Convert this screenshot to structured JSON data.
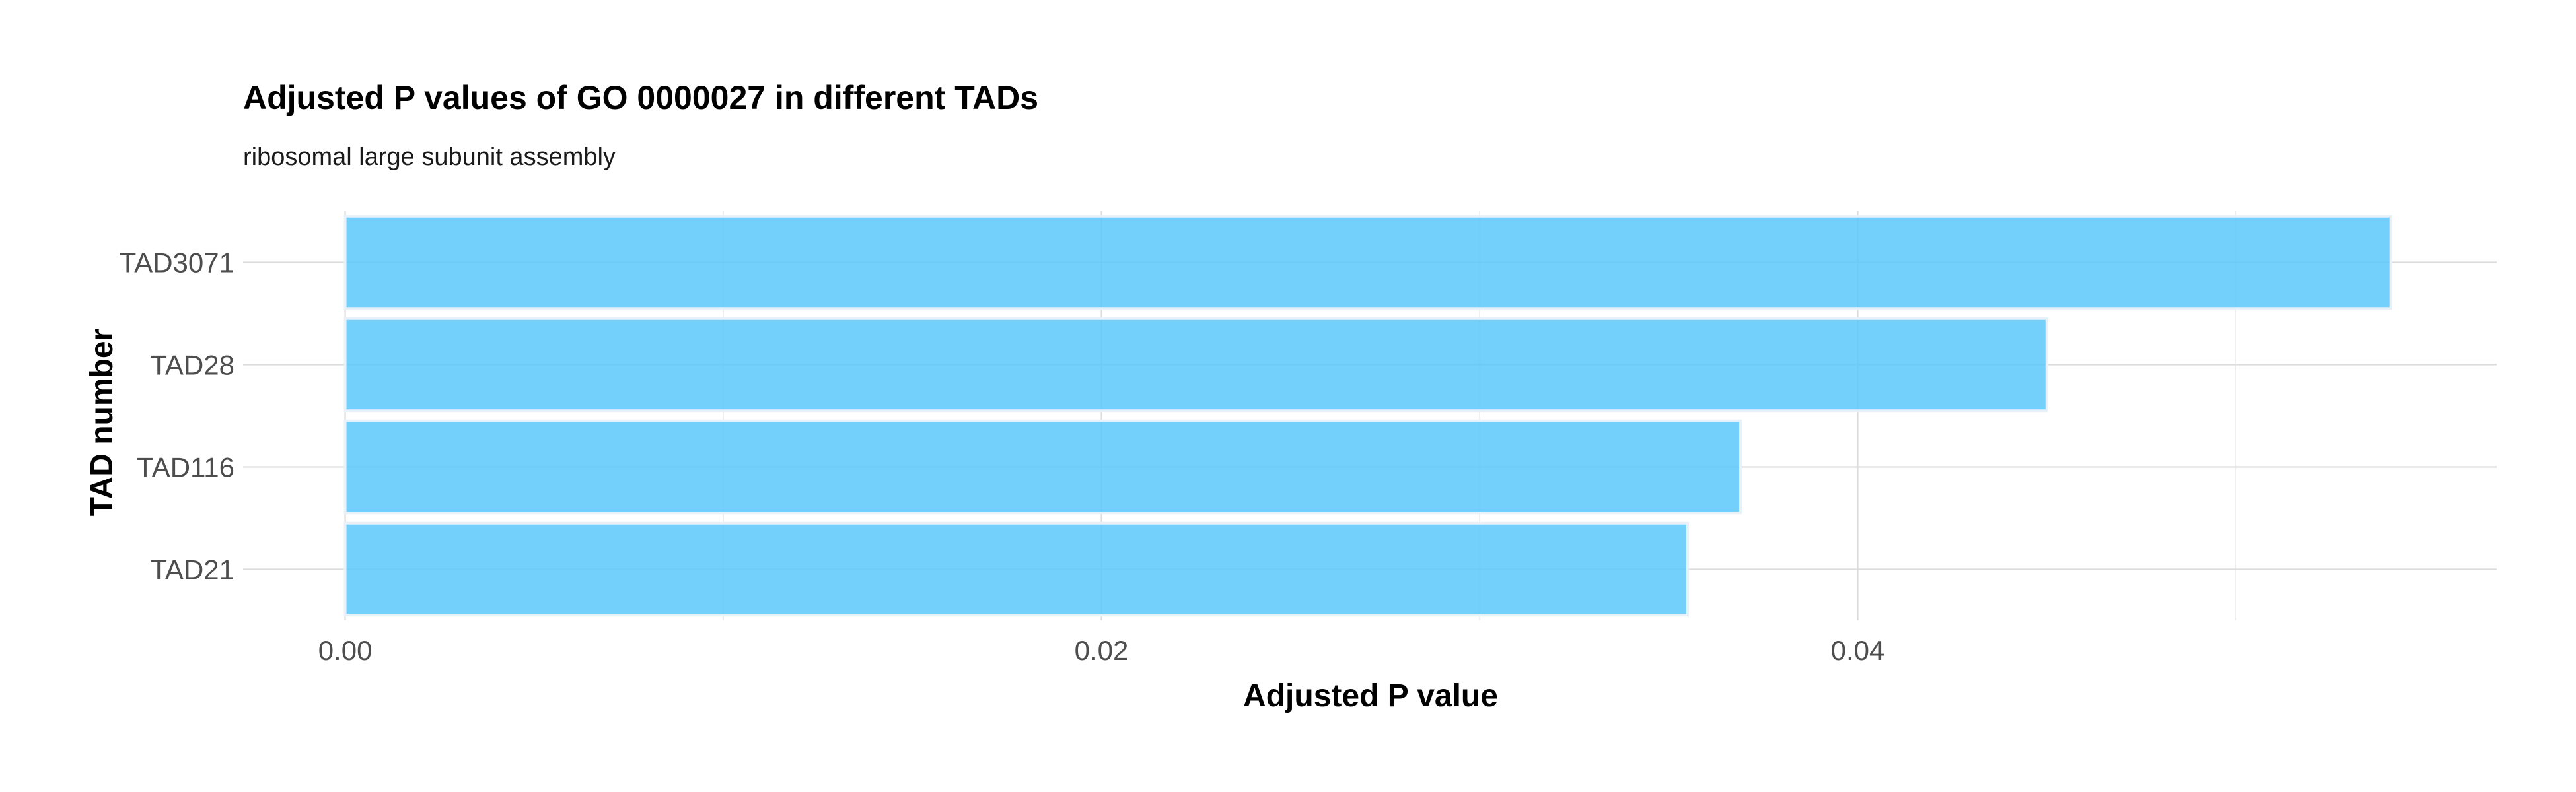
{
  "chart_data": {
    "type": "bar",
    "orientation": "horizontal",
    "title": "Adjusted P values of GO 0000027 in different TADs",
    "subtitle": "ribosomal large subunit assembly",
    "xlabel": "Adjusted P value",
    "ylabel": "TAD number",
    "categories": [
      "TAD3071",
      "TAD28",
      "TAD116",
      "TAD21"
    ],
    "values": [
      0.0541,
      0.045,
      0.0369,
      0.0355
    ],
    "xlim": [
      -0.0027,
      0.0569
    ],
    "xticks": [
      0.0,
      0.02,
      0.04
    ],
    "xtick_labels": [
      "0.00",
      "0.02",
      "0.04"
    ],
    "bar_color": "#5bc8fa",
    "grid": true,
    "legend": "none"
  }
}
